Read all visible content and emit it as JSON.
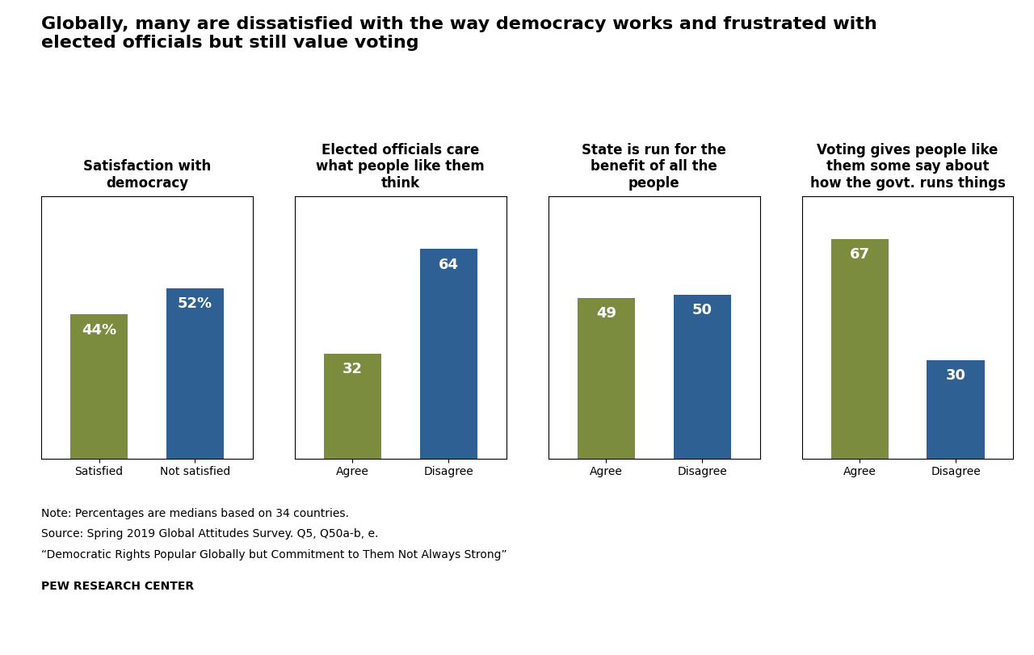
{
  "title": "Globally, many are dissatisfied with the way democracy works and frustrated with\nelected officials but still value voting",
  "annotations": [
    "Note: Percentages are medians based on 34 countries.",
    "Source: Spring 2019 Global Attitudes Survey. Q5, Q50a-b, e.",
    "“Democratic Rights Popular Globally but Commitment to Them Not Always Strong”",
    "PEW RESEARCH CENTER"
  ],
  "chart_data": [
    {
      "type": "bar",
      "title": "Satisfaction with\ndemocracy",
      "categories": [
        "Satisfied",
        "Not satisfied"
      ],
      "values": [
        44,
        52
      ],
      "value_labels": [
        "44%",
        "52%"
      ],
      "colors": [
        "#7b8c3f",
        "#2e6094"
      ],
      "ylim": [
        0,
        80
      ],
      "yticks": [],
      "tick_labels": "x",
      "data_labels": true,
      "grid": false
    },
    {
      "type": "bar",
      "title": "Elected officials care\nwhat people like them\nthink",
      "categories": [
        "Agree",
        "Disagree"
      ],
      "values": [
        32,
        64
      ],
      "value_labels": [
        "32",
        "64"
      ],
      "colors": [
        "#7b8c3f",
        "#2e6094"
      ],
      "ylim": [
        0,
        80
      ],
      "yticks": [],
      "tick_labels": "x",
      "data_labels": true,
      "grid": false
    },
    {
      "type": "bar",
      "title": "State is run for the\nbenefit of all the\npeople",
      "categories": [
        "Agree",
        "Disagree"
      ],
      "values": [
        49,
        50
      ],
      "value_labels": [
        "49",
        "50"
      ],
      "colors": [
        "#7b8c3f",
        "#2e6094"
      ],
      "ylim": [
        0,
        80
      ],
      "yticks": [],
      "tick_labels": "x",
      "data_labels": true,
      "grid": false
    },
    {
      "type": "bar",
      "title": "Voting gives people like\nthem some say about\nhow the govt. runs things",
      "categories": [
        "Agree",
        "Disagree"
      ],
      "values": [
        67,
        30
      ],
      "value_labels": [
        "67",
        "30"
      ],
      "colors": [
        "#7b8c3f",
        "#2e6094"
      ],
      "ylim": [
        0,
        80
      ],
      "yticks": [],
      "tick_labels": "x",
      "data_labels": true,
      "grid": false
    }
  ]
}
